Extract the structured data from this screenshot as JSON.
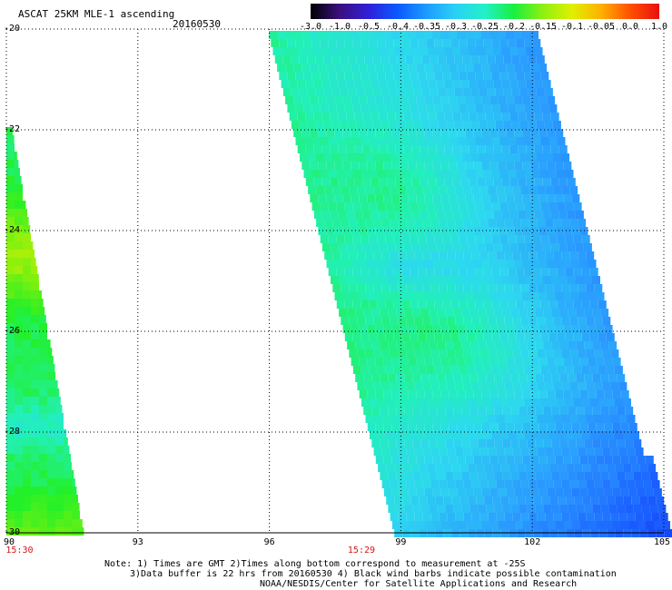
{
  "header": {
    "title": "ASCAT 25KM MLE-1 ascending",
    "date": "20160530"
  },
  "colorbar": {
    "labels": [
      "-3.0",
      "-1.0",
      "-0.5",
      "-0.4",
      "-0.35",
      "-0.3",
      "-0.25",
      "-0.2",
      "-0.15",
      "-0.1",
      "-0.05",
      "0.0",
      "1.0"
    ],
    "colors": [
      "#000000",
      "#3a1080",
      "#3020d8",
      "#0a5aff",
      "#1e9bff",
      "#29d2f5",
      "#22f0c8",
      "#18f040",
      "#8ef010",
      "#e0f000",
      "#ffb000",
      "#ff5000",
      "#e81010"
    ]
  },
  "map": {
    "lat_labels": [
      "-20",
      "-22",
      "-24",
      "-26",
      "-28",
      "-30"
    ],
    "lon_labels": [
      "90",
      "93",
      "96",
      "99",
      "102",
      "105"
    ],
    "lat_range": [
      -30,
      -20
    ],
    "lon_range": [
      90,
      105
    ],
    "grid": true,
    "time_labels": [
      {
        "text": "15:30",
        "lon": 90.3
      },
      {
        "text": "15:29",
        "lon": 98.1
      }
    ]
  },
  "notes": {
    "line1": "Note: 1) Times are GMT 2)Times along bottom correspond to measurement at -25S",
    "line2": "3)Data buffer is 22 hrs from 20160530 4) Black wind barbs indicate possible contamination",
    "line3": "NOAA/NESDIS/Center for Satellite Applications and Research"
  }
}
